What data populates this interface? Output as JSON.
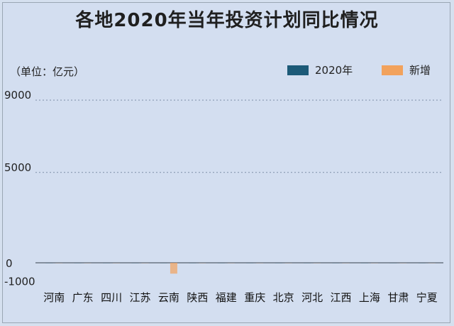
{
  "chart_data": {
    "type": "bar",
    "title": "各地2020年当年投资计划同比情况",
    "unit_label": "（单位：亿元）",
    "categories": [
      "河南",
      "广东",
      "四川",
      "江苏",
      "云南",
      "陕西",
      "福建",
      "重庆",
      "北京",
      "河北",
      "江西",
      "上海",
      "甘肃",
      "宁夏"
    ],
    "series": [
      {
        "name": "2020年",
        "color": "#1c5a78",
        "values": [
          0,
          0,
          0,
          0,
          0,
          0,
          0,
          0,
          0,
          0,
          0,
          0,
          0,
          0
        ]
      },
      {
        "name": "新增",
        "color": "#f2a25c",
        "values": [
          0,
          0,
          0,
          0,
          -600,
          0,
          0,
          0,
          0,
          0,
          0,
          0,
          0,
          0
        ]
      }
    ],
    "y_ticks": [
      9000,
      5000,
      0,
      -1000
    ],
    "y_tick_labels": [
      "9000",
      "5000",
      "0",
      "-1000"
    ],
    "ylim": [
      -1000,
      9000
    ],
    "grid": "dotted",
    "legend_position": "top-right"
  }
}
